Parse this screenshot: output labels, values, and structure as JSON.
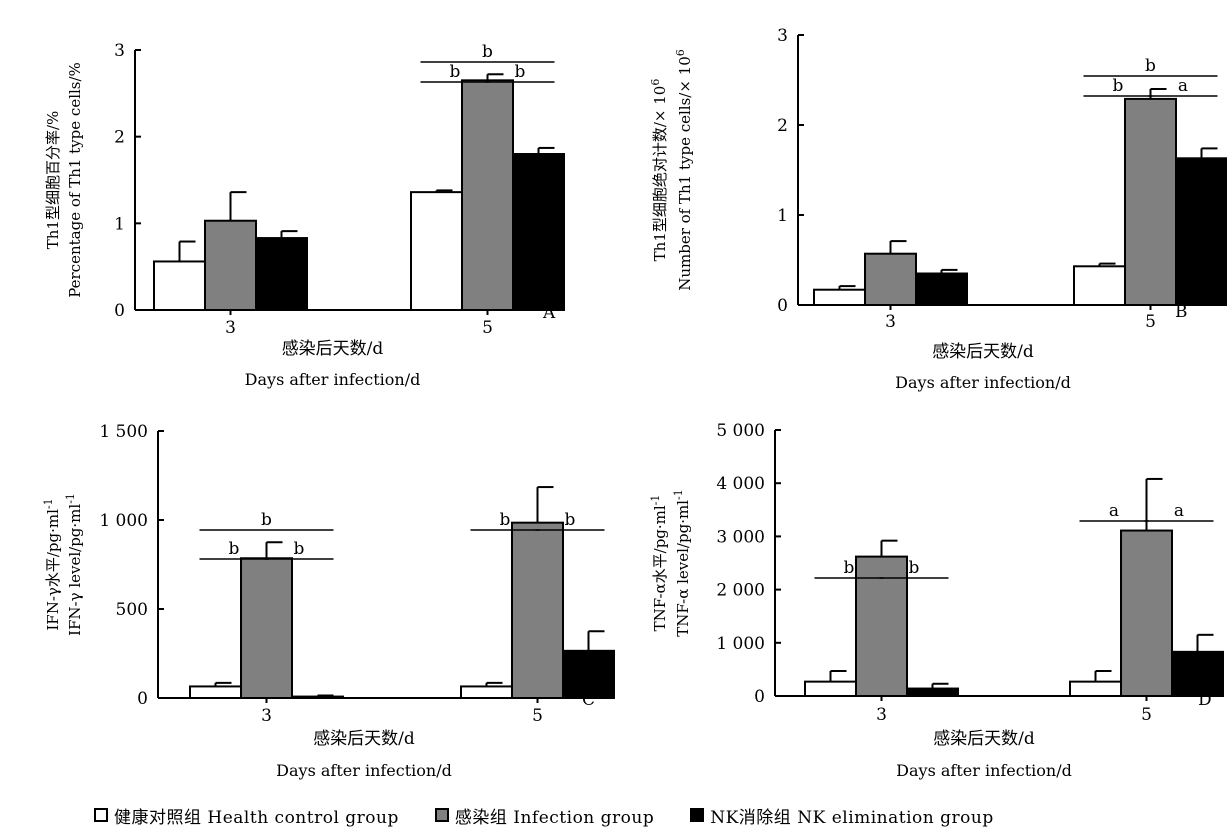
{
  "legend": [
    {
      "label": "健康对照组  Health  control  group",
      "color": "#ffffff"
    },
    {
      "label": "感染组  Infection  group",
      "color": "#808080"
    },
    {
      "label": "NK消除组  NK  elimination  group",
      "color": "#000000"
    }
  ],
  "chart_data": [
    {
      "type": "bar",
      "panel": "A",
      "categories": [
        "3",
        "5"
      ],
      "xlabel_zh": "感染后天数/d",
      "xlabel_en": "Days  after  infection/d",
      "ylabel_zh": "Th1型细胞百分率/%",
      "ylabel_en": "Percentage  of  Th1  type  cells/%",
      "ylim": [
        0,
        3
      ],
      "yticks": [
        0,
        1,
        2,
        3
      ],
      "ytick_labels": [
        "0",
        "1",
        "2",
        "3"
      ],
      "series": [
        {
          "name": "健康对照组 Health control group",
          "values": [
            0.56,
            1.36
          ],
          "errors": [
            0.23,
            0.02
          ],
          "color": "#ffffff"
        },
        {
          "name": "感染组 Infection group",
          "values": [
            1.03,
            2.65
          ],
          "errors": [
            0.33,
            0.07
          ],
          "color": "#808080"
        },
        {
          "name": "NK消除组 NK elimination group",
          "values": [
            0.83,
            1.8
          ],
          "errors": [
            0.08,
            0.07
          ],
          "color": "#000000"
        }
      ],
      "significance": [
        {
          "category": 1,
          "from": 0,
          "to": 1,
          "label": "b",
          "level": 2
        },
        {
          "category": 1,
          "from": 1,
          "to": 2,
          "label": "b",
          "level": 2
        },
        {
          "category": 1,
          "from": 0,
          "to": 2,
          "label": "b",
          "level": 3
        }
      ]
    },
    {
      "type": "bar",
      "panel": "B",
      "categories": [
        "3",
        "5"
      ],
      "xlabel_zh": "感染后天数/d",
      "xlabel_en": "Days  after  infection/d",
      "ylabel_zh": "Th1型细胞绝对计数/× 10",
      "ylabel_en": "Number  of  Th1  type  cells/× 10",
      "ylabel_sup": "6",
      "ylim": [
        0,
        3
      ],
      "yticks": [
        0,
        1,
        2,
        3
      ],
      "ytick_labels": [
        "0",
        "1",
        "2",
        "3"
      ],
      "series": [
        {
          "name": "健康对照组 Health control group",
          "values": [
            0.17,
            0.43
          ],
          "errors": [
            0.04,
            0.03
          ],
          "color": "#ffffff"
        },
        {
          "name": "感染组 Infection group",
          "values": [
            0.57,
            2.29
          ],
          "errors": [
            0.14,
            0.11
          ],
          "color": "#808080"
        },
        {
          "name": "NK消除组 NK elimination group",
          "values": [
            0.35,
            1.63
          ],
          "errors": [
            0.04,
            0.11
          ],
          "color": "#000000"
        }
      ],
      "significance": [
        {
          "category": 1,
          "from": 0,
          "to": 1,
          "label": "b",
          "level": 2
        },
        {
          "category": 1,
          "from": 1,
          "to": 2,
          "label": "a",
          "level": 2
        },
        {
          "category": 1,
          "from": 0,
          "to": 2,
          "label": "b",
          "level": 3
        }
      ]
    },
    {
      "type": "bar",
      "panel": "C",
      "categories": [
        "3",
        "5"
      ],
      "xlabel_zh": "感染后天数/d",
      "xlabel_en": "Days  after  infection/d",
      "ylabel_zh": "IFN-γ水平/pg·ml",
      "ylabel_en": "IFN-γ  level/pg·ml",
      "ylabel_sup": "-1",
      "ylim": [
        0,
        1500
      ],
      "yticks": [
        0,
        500,
        1000,
        1500
      ],
      "ytick_labels": [
        "0",
        "500",
        "1 000",
        "1 500"
      ],
      "series": [
        {
          "name": "健康对照组 Health control group",
          "values": [
            65,
            65
          ],
          "errors": [
            20,
            20
          ],
          "color": "#ffffff"
        },
        {
          "name": "感染组 Infection group",
          "values": [
            785,
            985
          ],
          "errors": [
            90,
            200
          ],
          "color": "#808080"
        },
        {
          "name": "NK消除组 NK elimination group",
          "values": [
            8,
            265
          ],
          "errors": [
            6,
            110
          ],
          "color": "#000000"
        }
      ],
      "significance": [
        {
          "category": 0,
          "from": 0,
          "to": 1,
          "label": "b",
          "level": 2
        },
        {
          "category": 0,
          "from": 1,
          "to": 2,
          "label": "b",
          "level": 2
        },
        {
          "category": 0,
          "from": 0,
          "to": 2,
          "label": "b",
          "level": 3
        },
        {
          "category": 1,
          "from": 0,
          "to": 1,
          "label": "b",
          "level": 3
        },
        {
          "category": 1,
          "from": 1,
          "to": 2,
          "label": "b",
          "level": 3
        }
      ]
    },
    {
      "type": "bar",
      "panel": "D",
      "categories": [
        "3",
        "5"
      ],
      "xlabel_zh": "感染后天数/d",
      "xlabel_en": "Days  after  infection/d",
      "ylabel_zh": "TNF-α水平/pg·ml",
      "ylabel_en": "TNF-α  level/pg·ml",
      "ylabel_sup": "-1",
      "ylim": [
        0,
        5000
      ],
      "yticks": [
        0,
        1000,
        2000,
        3000,
        4000,
        5000
      ],
      "ytick_labels": [
        "0",
        "1 000",
        "2 000",
        "3 000",
        "4 000",
        "5 000"
      ],
      "series": [
        {
          "name": "健康对照组 Health control group",
          "values": [
            270,
            270
          ],
          "errors": [
            200,
            200
          ],
          "color": "#ffffff"
        },
        {
          "name": "感染组 Infection group",
          "values": [
            2620,
            3110
          ],
          "errors": [
            300,
            970
          ],
          "color": "#808080"
        },
        {
          "name": "NK消除组 NK elimination group",
          "values": [
            140,
            830
          ],
          "errors": [
            90,
            320
          ],
          "color": "#000000"
        }
      ],
      "significance": [
        {
          "category": 0,
          "from": 0,
          "to": 1,
          "label": "b",
          "level": 2
        },
        {
          "category": 0,
          "from": 1,
          "to": 2,
          "label": "b",
          "level": 2
        },
        {
          "category": 1,
          "from": 0,
          "to": 1,
          "label": "a",
          "level": 3
        },
        {
          "category": 1,
          "from": 1,
          "to": 2,
          "label": "a",
          "level": 3
        }
      ]
    }
  ]
}
